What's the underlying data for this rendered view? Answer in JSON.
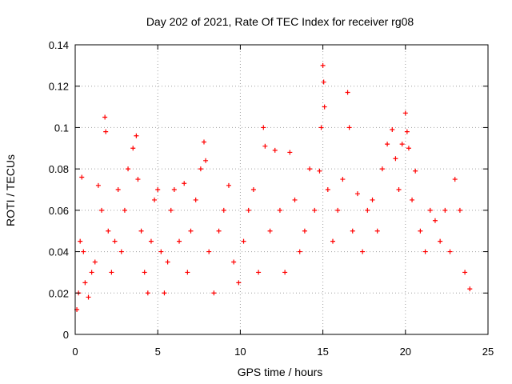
{
  "chart_data": {
    "type": "scatter",
    "title": "Day 202 of 2021, Rate Of TEC Index for receiver rg08",
    "xlabel": "GPS time / hours",
    "ylabel": "ROTI / TECUs",
    "xlim": [
      0,
      25
    ],
    "ylim": [
      0,
      0.14
    ],
    "xticks": [
      "0",
      "5",
      "10",
      "15",
      "20",
      "25"
    ],
    "yticks": [
      "0",
      "0.02",
      "0.04",
      "0.06",
      "0.08",
      "0.1",
      "0.12",
      "0.14"
    ],
    "grid": true,
    "marker": "+",
    "color": "#ff0000",
    "series": [
      {
        "x": [
          0.1,
          0.2,
          0.3,
          0.4,
          0.5,
          0.6,
          0.8,
          1.0,
          1.2,
          1.4,
          1.6,
          1.8,
          1.85,
          2.0,
          2.2,
          2.4,
          2.6,
          2.8,
          3.0,
          3.2,
          3.5,
          3.7,
          3.8,
          4.0,
          4.2,
          4.4,
          4.6,
          4.8,
          5.0,
          5.2,
          5.4,
          5.6,
          5.8,
          6.0,
          6.3,
          6.6,
          6.8,
          7.0,
          7.3,
          7.6,
          7.8,
          7.9,
          8.1,
          8.4,
          8.7,
          9.0,
          9.3,
          9.6,
          9.9,
          10.2,
          10.5,
          10.8,
          11.1,
          11.4,
          11.5,
          11.8,
          12.1,
          12.4,
          12.7,
          13.0,
          13.3,
          13.6,
          13.9,
          14.2,
          14.5,
          14.8,
          14.9,
          15.0,
          15.05,
          15.1,
          15.3,
          15.6,
          15.9,
          16.2,
          16.5,
          16.6,
          16.8,
          17.1,
          17.4,
          17.7,
          18.0,
          18.3,
          18.6,
          18.9,
          19.2,
          19.4,
          19.6,
          19.8,
          20.0,
          20.1,
          20.2,
          20.4,
          20.6,
          20.9,
          21.2,
          21.5,
          21.8,
          22.1,
          22.4,
          22.7,
          23.0,
          23.3,
          23.6,
          23.9
        ],
        "y": [
          0.012,
          0.02,
          0.045,
          0.076,
          0.04,
          0.025,
          0.018,
          0.03,
          0.035,
          0.072,
          0.06,
          0.105,
          0.098,
          0.05,
          0.03,
          0.045,
          0.07,
          0.04,
          0.06,
          0.08,
          0.09,
          0.096,
          0.075,
          0.05,
          0.03,
          0.02,
          0.045,
          0.065,
          0.07,
          0.04,
          0.02,
          0.035,
          0.06,
          0.07,
          0.045,
          0.073,
          0.03,
          0.05,
          0.065,
          0.08,
          0.093,
          0.084,
          0.04,
          0.02,
          0.05,
          0.06,
          0.072,
          0.035,
          0.025,
          0.045,
          0.06,
          0.07,
          0.03,
          0.1,
          0.091,
          0.05,
          0.089,
          0.06,
          0.03,
          0.088,
          0.065,
          0.04,
          0.05,
          0.08,
          0.06,
          0.079,
          0.1,
          0.13,
          0.122,
          0.11,
          0.07,
          0.045,
          0.06,
          0.075,
          0.117,
          0.1,
          0.05,
          0.068,
          0.04,
          0.06,
          0.065,
          0.05,
          0.08,
          0.092,
          0.099,
          0.085,
          0.07,
          0.092,
          0.107,
          0.098,
          0.09,
          0.065,
          0.079,
          0.05,
          0.04,
          0.06,
          0.055,
          0.045,
          0.06,
          0.04,
          0.075,
          0.06,
          0.03,
          0.022
        ]
      }
    ]
  }
}
